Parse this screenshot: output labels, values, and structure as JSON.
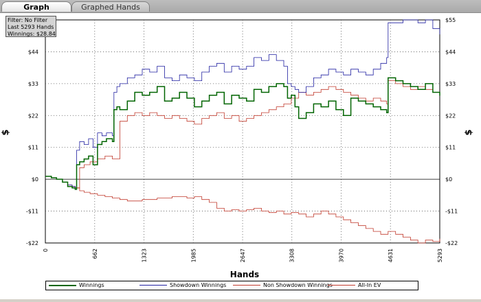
{
  "tabs": [
    {
      "label": "Graph",
      "active": true
    },
    {
      "label": "Graphed Hands",
      "active": false
    }
  ],
  "info_box": {
    "filter": "Filter: No Filter",
    "hands": "Last 5293 Hands",
    "winnings": "Winnings: $28.84"
  },
  "chart_data": {
    "type": "line",
    "xlabel": "Hands",
    "ylabel": "$",
    "xlim": [
      0,
      5293
    ],
    "ylim": [
      -22,
      55
    ],
    "x_ticks": [
      0,
      662,
      1323,
      1985,
      2647,
      3308,
      3970,
      4631,
      5293
    ],
    "y_ticks": [
      {
        "value": -22,
        "label": "-$22"
      },
      {
        "value": -11,
        "label": "-$11"
      },
      {
        "value": 0,
        "label": "$0"
      },
      {
        "value": 11,
        "label": "$11"
      },
      {
        "value": 22,
        "label": "$22"
      },
      {
        "value": 33,
        "label": "$33"
      },
      {
        "value": 44,
        "label": "$44"
      },
      {
        "value": 55,
        "label": "$55"
      }
    ],
    "grid": true,
    "legend_position": "bottom",
    "series": [
      {
        "name": "Winnings",
        "color": "#006400",
        "width": 1.5,
        "x": [
          0,
          80,
          150,
          230,
          300,
          360,
          400,
          420,
          460,
          520,
          580,
          640,
          700,
          760,
          820,
          900,
          920,
          960,
          1000,
          1100,
          1200,
          1300,
          1400,
          1500,
          1600,
          1700,
          1800,
          1900,
          2000,
          2100,
          2200,
          2300,
          2400,
          2500,
          2600,
          2700,
          2800,
          2900,
          3000,
          3100,
          3200,
          3250,
          3300,
          3350,
          3400,
          3500,
          3600,
          3700,
          3800,
          3900,
          4000,
          4100,
          4200,
          4300,
          4400,
          4500,
          4580,
          4600,
          4700,
          4800,
          4900,
          5000,
          5100,
          5200,
          5293
        ],
        "y": [
          1,
          0.5,
          0,
          -1,
          -2.5,
          -3,
          -3.5,
          5,
          6,
          7,
          8,
          5,
          12,
          13,
          14,
          13,
          24,
          25,
          24,
          27,
          30,
          29,
          30,
          32,
          27,
          28,
          30,
          28,
          25,
          27,
          29,
          30,
          26,
          29,
          28,
          27,
          31,
          30,
          32,
          33,
          32,
          28,
          29,
          25,
          21,
          23,
          26,
          25,
          27,
          24,
          22,
          28,
          27,
          26,
          25,
          24,
          23,
          35,
          34,
          33,
          32,
          31,
          33,
          30,
          28.84
        ]
      },
      {
        "name": "Showdown Winnings",
        "color": "#1e1ea0",
        "width": 0.8,
        "x": [
          0,
          80,
          150,
          230,
          300,
          360,
          400,
          420,
          460,
          520,
          580,
          640,
          700,
          760,
          820,
          900,
          920,
          960,
          1000,
          1100,
          1200,
          1300,
          1400,
          1500,
          1600,
          1700,
          1800,
          1900,
          2000,
          2100,
          2200,
          2300,
          2400,
          2500,
          2600,
          2700,
          2800,
          2900,
          3000,
          3100,
          3200,
          3250,
          3300,
          3350,
          3400,
          3500,
          3600,
          3700,
          3800,
          3900,
          4000,
          4100,
          4200,
          4300,
          4400,
          4500,
          4580,
          4600,
          4700,
          4800,
          4900,
          5000,
          5100,
          5200,
          5293
        ],
        "y": [
          1,
          0.5,
          0,
          -1,
          -2,
          -2.5,
          -3,
          10,
          13,
          12,
          14,
          11,
          16,
          15,
          16,
          15,
          30,
          32,
          33,
          35,
          36,
          38,
          37,
          39,
          35,
          34,
          36,
          35,
          34,
          37,
          39,
          40,
          37,
          39,
          38,
          39,
          42,
          41,
          43,
          41,
          39,
          33,
          32,
          31,
          30,
          32,
          35,
          36,
          38,
          37,
          36,
          38,
          37,
          36,
          38,
          40,
          42,
          54,
          54,
          55,
          55,
          54,
          55,
          52,
          50
        ]
      },
      {
        "name": "Non Showdown Winnings",
        "color": "#c0392b",
        "width": 0.8,
        "x": [
          0,
          80,
          150,
          230,
          300,
          360,
          400,
          460,
          520,
          600,
          700,
          800,
          900,
          1000,
          1100,
          1200,
          1300,
          1400,
          1500,
          1600,
          1700,
          1800,
          1900,
          2000,
          2100,
          2200,
          2300,
          2400,
          2500,
          2600,
          2700,
          2800,
          2900,
          3000,
          3100,
          3200,
          3300,
          3400,
          3500,
          3600,
          3700,
          3800,
          3900,
          4000,
          4100,
          4200,
          4300,
          4400,
          4500,
          4580,
          4600,
          4700,
          4800,
          4900,
          5000,
          5100,
          5200,
          5293
        ],
        "y": [
          1,
          0.5,
          0,
          -1,
          -2,
          -2.5,
          -3,
          4,
          5,
          6,
          7,
          8,
          7,
          20,
          22,
          23,
          22,
          23,
          22,
          21,
          22,
          21,
          20,
          19,
          21,
          22,
          23,
          21,
          22,
          20,
          21,
          22,
          23,
          24,
          25,
          26,
          28,
          30,
          29,
          30,
          31,
          32,
          31,
          30,
          29,
          28,
          27,
          28,
          27,
          26,
          34,
          33,
          32,
          31,
          32,
          31,
          30,
          29
        ]
      },
      {
        "name": "All-In EV",
        "color": "#c0392b",
        "width": 0.8,
        "x": [
          0,
          80,
          150,
          230,
          300,
          360,
          400,
          460,
          520,
          600,
          700,
          800,
          900,
          1000,
          1100,
          1200,
          1300,
          1400,
          1500,
          1600,
          1700,
          1800,
          1900,
          2000,
          2100,
          2200,
          2300,
          2400,
          2500,
          2600,
          2700,
          2800,
          2900,
          3000,
          3100,
          3200,
          3300,
          3400,
          3500,
          3600,
          3700,
          3800,
          3900,
          4000,
          4100,
          4200,
          4300,
          4400,
          4500,
          4600,
          4700,
          4800,
          4900,
          5000,
          5100,
          5200,
          5293
        ],
        "y": [
          1,
          0.5,
          0,
          -1,
          -2,
          -2.5,
          -3,
          -4,
          -4.5,
          -5,
          -5.5,
          -6,
          -6.5,
          -7,
          -7.5,
          -7.5,
          -7,
          -7,
          -6.5,
          -6.5,
          -6,
          -6,
          -6.5,
          -6,
          -7,
          -8,
          -10,
          -11,
          -10.5,
          -11,
          -10.5,
          -10,
          -11,
          -11.5,
          -11,
          -12,
          -11.5,
          -12,
          -13,
          -12,
          -11,
          -12,
          -13,
          -14,
          -15,
          -16,
          -17,
          -18,
          -19,
          -18,
          -19,
          -20,
          -21,
          -22,
          -21,
          -21.5,
          -20.5
        ]
      }
    ]
  }
}
